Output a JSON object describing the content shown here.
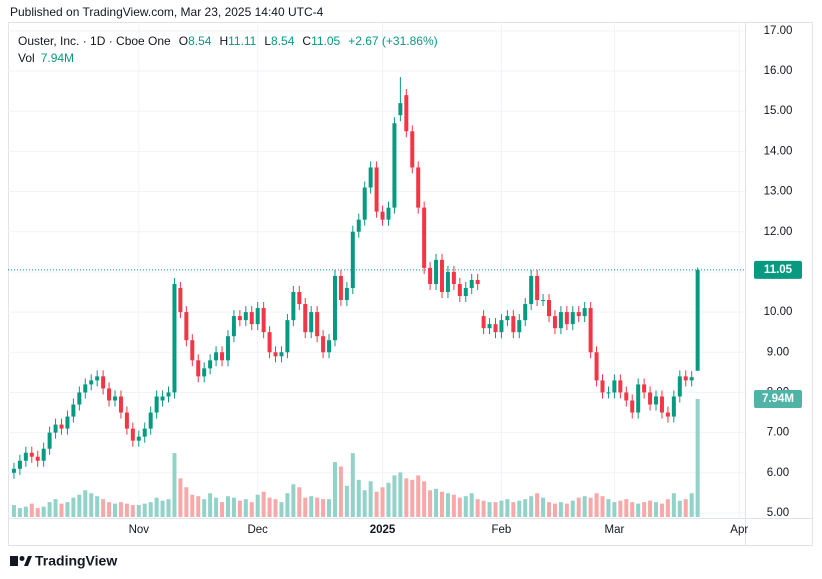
{
  "header": {
    "published": "Published on TradingView.com, Mar 23, 2025 14:40 UTC-4",
    "symbol": "Ouster, Inc. · 1D · Cboe One",
    "ohlc_letters": [
      "O",
      "H",
      "L",
      "C"
    ],
    "change": "+2.67 (+31.86%)",
    "vol_label": "Vol"
  },
  "footer": {
    "brand": "TradingView"
  },
  "chart_data": {
    "type": "candlestick",
    "up_color": "#089981",
    "down_color": "#f23645",
    "volume_up_color": "#92d2c9",
    "volume_down_color": "#f7a9a9",
    "grid": true,
    "xlim": [
      -1,
      122.8
    ],
    "xticks": [
      {
        "value": 21,
        "label": "Nov"
      },
      {
        "value": 41,
        "label": "Dec"
      },
      {
        "value": 62,
        "label": "2025"
      },
      {
        "value": 82,
        "label": "Feb"
      },
      {
        "value": 101,
        "label": "Mar"
      },
      {
        "value": 122,
        "label": "Apr"
      }
    ],
    "ylim": [
      4.9,
      17.22
    ],
    "yticks": [
      {
        "value": 5,
        "label": "5.00"
      },
      {
        "value": 6,
        "label": "6.00"
      },
      {
        "value": 7,
        "label": "7.00"
      },
      {
        "value": 8,
        "label": "8.00"
      },
      {
        "value": 9,
        "label": "9.00"
      },
      {
        "value": 10,
        "label": "10.00"
      },
      {
        "value": 11,
        "label": "11.00"
      },
      {
        "value": 12,
        "label": "12.00"
      },
      {
        "value": 13,
        "label": "13.00"
      },
      {
        "value": 14,
        "label": "14.00"
      },
      {
        "value": 15,
        "label": "15.00"
      },
      {
        "value": 16,
        "label": "16.00"
      },
      {
        "value": 17,
        "label": "17.00"
      }
    ],
    "y2lim": [
      0,
      33300000
    ],
    "open": [
      6.0,
      6.1,
      6.3,
      6.5,
      6.4,
      6.3,
      6.6,
      7.0,
      7.2,
      7.1,
      7.4,
      7.7,
      8.0,
      8.2,
      8.3,
      8.4,
      8.1,
      7.8,
      7.9,
      7.5,
      7.1,
      6.8,
      6.9,
      7.1,
      7.5,
      7.8,
      7.9,
      8.0,
      10.6,
      10.0,
      9.3,
      8.8,
      8.4,
      8.6,
      8.8,
      9.0,
      8.8,
      9.4,
      9.9,
      9.8,
      10.0,
      9.7,
      10.1,
      9.5,
      9.0,
      8.9,
      9.0,
      9.8,
      10.5,
      10.2,
      9.5,
      10.0,
      9.4,
      9.0,
      9.3,
      10.9,
      10.3,
      10.6,
      12.0,
      12.3,
      13.1,
      13.6,
      12.5,
      12.3,
      12.6,
      14.9,
      15.4,
      14.5,
      13.6,
      12.6,
      11.1,
      10.7,
      11.3,
      10.5,
      11.0,
      10.7,
      10.4,
      10.6,
      10.8,
      9.9,
      9.6,
      9.7,
      9.5,
      9.8,
      9.9,
      9.5,
      9.8,
      10.2,
      10.9,
      10.3,
      10.3,
      9.9,
      9.6,
      10.0,
      9.7,
      10.0,
      9.9,
      10.1,
      9.0,
      8.3,
      8.0,
      8.0,
      8.3,
      8.0,
      7.8,
      7.5,
      8.2,
      8.0,
      7.7,
      7.9,
      7.5,
      7.4,
      7.9,
      8.4,
      8.3,
      8.54
    ],
    "high": [
      6.25,
      6.45,
      6.65,
      6.65,
      6.55,
      6.75,
      7.15,
      7.35,
      7.35,
      7.55,
      7.85,
      8.15,
      8.35,
      8.45,
      8.55,
      8.55,
      8.25,
      8.05,
      8.05,
      7.65,
      7.25,
      7.05,
      7.25,
      7.65,
      8.05,
      8.05,
      8.15,
      10.85,
      10.75,
      10.15,
      9.45,
      8.95,
      8.75,
      8.95,
      9.15,
      9.15,
      9.55,
      10.05,
      10.05,
      10.15,
      10.15,
      10.25,
      10.25,
      9.65,
      9.15,
      9.15,
      9.95,
      10.65,
      10.65,
      10.35,
      10.15,
      10.15,
      9.55,
      9.45,
      11.05,
      11.05,
      10.75,
      12.15,
      12.45,
      13.25,
      13.75,
      13.75,
      12.65,
      12.75,
      14.85,
      15.85,
      15.55,
      14.65,
      13.75,
      12.75,
      11.25,
      11.45,
      11.45,
      11.15,
      11.15,
      10.85,
      10.75,
      10.95,
      10.95,
      10.05,
      9.85,
      9.85,
      9.95,
      10.05,
      10.05,
      9.95,
      10.35,
      11.05,
      11.05,
      10.45,
      10.45,
      10.05,
      10.15,
      10.15,
      10.15,
      10.15,
      10.25,
      10.25,
      9.15,
      8.45,
      8.15,
      8.45,
      8.45,
      8.15,
      7.95,
      8.35,
      8.35,
      8.15,
      8.05,
      8.05,
      7.65,
      8.05,
      8.55,
      8.55,
      8.53,
      11.11
    ],
    "low": [
      5.85,
      5.95,
      6.15,
      6.25,
      6.15,
      6.15,
      6.45,
      6.85,
      6.95,
      6.95,
      7.25,
      7.55,
      7.85,
      8.05,
      8.15,
      7.95,
      7.65,
      7.65,
      7.35,
      6.95,
      6.65,
      6.65,
      6.75,
      6.95,
      7.35,
      7.65,
      7.75,
      7.85,
      9.85,
      9.15,
      8.65,
      8.25,
      8.25,
      8.45,
      8.65,
      8.65,
      8.65,
      9.25,
      9.65,
      9.65,
      9.55,
      9.55,
      9.35,
      8.85,
      8.75,
      8.75,
      8.85,
      9.65,
      10.05,
      9.35,
      9.35,
      9.25,
      8.85,
      8.85,
      9.15,
      10.15,
      10.15,
      10.45,
      11.85,
      12.15,
      12.95,
      12.35,
      12.15,
      12.15,
      12.45,
      14.75,
      14.35,
      13.45,
      12.45,
      10.95,
      10.55,
      10.55,
      10.35,
      10.35,
      10.55,
      10.25,
      10.25,
      10.45,
      10.55,
      9.45,
      9.45,
      9.35,
      9.35,
      9.65,
      9.35,
      9.35,
      9.65,
      10.05,
      10.15,
      10.15,
      9.75,
      9.45,
      9.45,
      9.55,
      9.55,
      9.75,
      9.75,
      8.85,
      8.15,
      7.85,
      7.85,
      7.85,
      7.85,
      7.65,
      7.35,
      7.35,
      7.85,
      7.55,
      7.55,
      7.35,
      7.25,
      7.25,
      7.75,
      8.15,
      8.15,
      8.54
    ],
    "close": [
      6.1,
      6.3,
      6.5,
      6.4,
      6.3,
      6.6,
      7.0,
      7.2,
      7.1,
      7.4,
      7.7,
      8.0,
      8.2,
      8.3,
      8.4,
      8.1,
      7.8,
      7.9,
      7.5,
      7.1,
      6.8,
      6.9,
      7.1,
      7.5,
      7.9,
      7.9,
      8.0,
      10.7,
      10.0,
      9.3,
      8.8,
      8.4,
      8.6,
      8.8,
      9.0,
      8.8,
      9.4,
      9.9,
      9.8,
      10.0,
      9.7,
      10.1,
      9.5,
      9.0,
      8.9,
      9.0,
      9.8,
      10.5,
      10.2,
      9.5,
      10.0,
      9.4,
      9.0,
      9.3,
      10.9,
      10.3,
      10.6,
      12.0,
      12.3,
      13.1,
      13.6,
      12.5,
      12.3,
      12.6,
      14.7,
      15.2,
      14.5,
      13.6,
      12.6,
      11.1,
      10.7,
      11.3,
      10.5,
      11.0,
      10.7,
      10.4,
      10.6,
      10.8,
      10.7,
      9.6,
      9.7,
      9.5,
      9.8,
      9.9,
      9.5,
      9.8,
      10.2,
      10.9,
      10.3,
      10.3,
      9.9,
      9.6,
      10.0,
      9.7,
      10.0,
      9.9,
      10.1,
      9.0,
      8.3,
      8.0,
      8.0,
      8.3,
      8.0,
      7.8,
      7.5,
      8.2,
      8.0,
      7.7,
      7.9,
      7.5,
      7.4,
      7.9,
      8.4,
      8.3,
      8.38,
      11.05
    ],
    "volume": {
      "name": "Vol",
      "values": [
        800000,
        600000,
        700000,
        900000,
        600000,
        700000,
        1000000,
        1200000,
        900000,
        1000000,
        1300000,
        1500000,
        1800000,
        1600000,
        1400000,
        1200000,
        1000000,
        900000,
        1000000,
        900000,
        800000,
        800000,
        900000,
        1000000,
        1300000,
        1100000,
        1200000,
        4300000,
        2600000,
        2000000,
        1500000,
        1400000,
        1200000,
        1600000,
        1300000,
        1000000,
        1400000,
        1300000,
        1100000,
        1200000,
        1000000,
        1500000,
        1700000,
        1300000,
        1200000,
        1000000,
        1600000,
        2200000,
        2000000,
        1300000,
        1400000,
        1300000,
        1200000,
        1200000,
        3700000,
        3400000,
        2100000,
        4300000,
        2500000,
        1800000,
        2400000,
        1700000,
        2000000,
        2300000,
        2800000,
        3000000,
        2600000,
        2500000,
        2800000,
        2400000,
        1800000,
        1900000,
        1700000,
        1600000,
        1500000,
        1300000,
        1400000,
        1600000,
        1200000,
        1100000,
        1000000,
        1000000,
        1100000,
        1200000,
        1000000,
        1100000,
        1200000,
        1400000,
        1600000,
        1300000,
        1000000,
        900000,
        1000000,
        900000,
        1100000,
        1300000,
        1400000,
        1300000,
        1600000,
        1400000,
        1200000,
        1000000,
        1100000,
        1200000,
        1000000,
        900000,
        1000000,
        1100000,
        1000000,
        900000,
        1200000,
        1600000,
        1100000,
        1200000,
        1600000,
        7940000
      ],
      "value_labels": [
        null,
        null,
        null,
        null,
        null,
        null,
        null,
        null,
        null,
        null,
        null,
        null,
        null,
        null,
        null,
        null,
        null,
        null,
        null,
        null,
        null,
        null,
        null,
        null,
        null,
        null,
        null,
        null,
        null,
        null,
        null,
        null,
        null,
        null,
        null,
        null,
        null,
        null,
        null,
        null,
        null,
        null,
        null,
        null,
        null,
        null,
        null,
        null,
        null,
        null,
        null,
        null,
        null,
        null,
        null,
        null,
        null,
        null,
        null,
        null,
        null,
        null,
        null,
        null,
        null,
        null,
        null,
        null,
        null,
        null,
        null,
        null,
        null,
        null,
        null,
        null,
        null,
        null,
        null,
        null,
        null,
        null,
        null,
        null,
        null,
        null,
        null,
        null,
        null,
        null,
        null,
        null,
        null,
        null,
        null,
        null,
        null,
        null,
        null,
        null,
        null,
        null,
        null,
        null,
        null,
        null,
        null,
        null,
        null,
        null,
        null,
        null,
        null,
        null,
        null,
        "7.94M"
      ]
    }
  }
}
